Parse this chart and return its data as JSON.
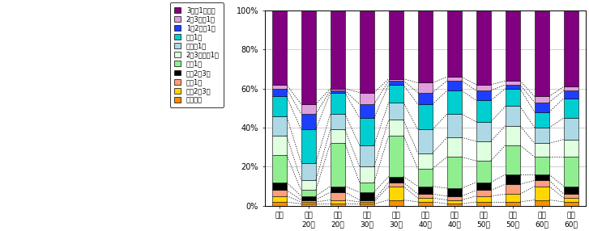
{
  "categories": [
    "全体",
    "男性\n20代",
    "女性\n20代",
    "男性\n30代",
    "女性\n30代",
    "男性\n40代",
    "女性\n40代",
    "男性\n50代",
    "女性\n50代",
    "男性\n60代",
    "女性\n60代"
  ],
  "series_labels": [
    "ほぼ毎日",
    "週に2〜3回",
    "週に1回",
    "月に2〜3回",
    "月に1回",
    "2〜3カ月に1回",
    "半年に1回",
    "年に1回",
    "1〜2年に1回",
    "2〜3年に1回",
    "3年に1回未満"
  ],
  "colors": [
    "#FF8C00",
    "#FFD700",
    "#FFA07A",
    "#000000",
    "#90EE90",
    "#E0FFE0",
    "#ADD8E6",
    "#00CED1",
    "#1E3EFF",
    "#DDA0DD",
    "#800080"
  ],
  "data": [
    [
      2,
      1,
      1,
      1,
      3,
      2,
      1,
      2,
      2,
      3,
      2
    ],
    [
      3,
      1,
      2,
      1,
      7,
      2,
      2,
      3,
      4,
      7,
      2
    ],
    [
      3,
      1,
      4,
      1,
      2,
      2,
      2,
      3,
      5,
      3,
      2
    ],
    [
      4,
      2,
      3,
      4,
      3,
      4,
      4,
      4,
      5,
      3,
      4
    ],
    [
      14,
      3,
      22,
      5,
      21,
      9,
      16,
      11,
      15,
      9,
      15
    ],
    [
      10,
      5,
      7,
      8,
      8,
      8,
      10,
      10,
      10,
      7,
      9
    ],
    [
      10,
      9,
      8,
      11,
      9,
      12,
      12,
      10,
      10,
      8,
      11
    ],
    [
      10,
      17,
      11,
      14,
      9,
      13,
      12,
      11,
      9,
      8,
      10
    ],
    [
      4,
      8,
      1,
      7,
      2,
      6,
      5,
      5,
      2,
      5,
      4
    ],
    [
      2,
      5,
      1,
      6,
      1,
      5,
      2,
      3,
      2,
      3,
      2
    ],
    [
      38,
      48,
      40,
      42,
      35,
      37,
      34,
      38,
      36,
      44,
      39
    ]
  ],
  "ylim": [
    0,
    100
  ],
  "yticks": [
    0,
    20,
    40,
    60,
    80,
    100
  ],
  "ytick_labels": [
    "0%",
    "20%",
    "40%",
    "60%",
    "80%",
    "100%"
  ],
  "background_color": "#FFFFFF",
  "grid_color": "#BBBBBB"
}
